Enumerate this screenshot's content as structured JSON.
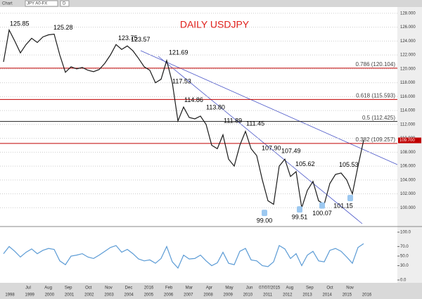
{
  "toolbar": {
    "window": "Chart",
    "symbol": "JPY A0-FX",
    "period": "D"
  },
  "chart_data": [
    {
      "type": "line",
      "title": "DAILY USDJPY",
      "title_color": "#e0201b",
      "color": "#1a1a1a",
      "values": [
        121.0,
        125.6,
        124.0,
        122.3,
        123.5,
        124.4,
        123.8,
        124.6,
        124.9,
        125.0,
        122.0,
        119.5,
        120.3,
        120.0,
        120.2,
        119.8,
        119.6,
        119.9,
        120.8,
        122.0,
        123.5,
        122.8,
        123.3,
        122.6,
        121.5,
        120.3,
        119.8,
        118.0,
        118.5,
        121.2,
        118.0,
        112.5,
        114.5,
        113.0,
        112.8,
        113.2,
        112.0,
        109.0,
        108.5,
        110.5,
        107.0,
        106.0,
        109.0,
        111.0,
        108.5,
        107.5,
        104.0,
        101.0,
        100.5,
        106.0,
        107.0,
        104.5,
        105.2,
        100.0,
        102.5,
        103.8,
        101.0,
        100.5,
        103.5,
        104.8,
        105.0,
        104.0,
        102.0,
        106.0,
        109.7
      ],
      "ylim": [
        97.7,
        128.7
      ],
      "yticks": [
        {
          "value": 100,
          "label": "100.000"
        },
        {
          "value": 102,
          "label": "102.000"
        },
        {
          "value": 104,
          "label": "104.000"
        },
        {
          "value": 106,
          "label": "106.000"
        },
        {
          "value": 108,
          "label": "108.000"
        },
        {
          "value": 110,
          "label": "110.000"
        },
        {
          "value": 112,
          "label": "112.000"
        },
        {
          "value": 114,
          "label": "114.000"
        },
        {
          "value": 116,
          "label": "116.000"
        },
        {
          "value": 118,
          "label": "118.000"
        },
        {
          "value": 120,
          "label": "120.000"
        },
        {
          "value": 122,
          "label": "122.000"
        },
        {
          "value": 124,
          "label": "124.000"
        },
        {
          "value": 126,
          "label": "126.000"
        },
        {
          "value": 128,
          "label": "128.000"
        }
      ],
      "grid": true,
      "levels": [
        {
          "value": 120.104,
          "label": "0.786 (120.104)",
          "color": "#c00000"
        },
        {
          "value": 115.593,
          "label": "0.618 (115.593)",
          "color": "#c00000"
        },
        {
          "value": 112.425,
          "label": "0.5 (112.425)",
          "color": "#222222"
        },
        {
          "value": 109.257,
          "label": "0.382 (109.257)",
          "color": "#c00000"
        }
      ],
      "high_labels": [
        125.85,
        125.28,
        123.75,
        123.57,
        121.69,
        117.53,
        114.86,
        {
          "value": 113.8,
          "label": "113.80"
        },
        111.89,
        111.45,
        {
          "value": 107.9,
          "label": "107.90"
        },
        107.49,
        105.62,
        105.53
      ],
      "low_labels": [
        {
          "value": 99,
          "label": "99.00"
        },
        99.51,
        100.07,
        101.15
      ],
      "low_color": "#9cc8f0",
      "last_price": {
        "value": 109.7,
        "label": "109.700"
      },
      "months": [
        "Jul",
        "Aug",
        "Sep",
        "Oct",
        "Nov",
        "Dec",
        "2016",
        "Feb",
        "Mar",
        "Apr",
        "May",
        "Jun",
        "07/07/2015",
        "Aug",
        "Sep",
        "Oct",
        "Nov"
      ],
      "years": [
        "1998",
        "1999",
        "2000",
        "2001",
        "2002",
        "2003",
        "2004",
        "2005",
        "2006",
        "2007",
        "2008",
        "2009",
        "2010",
        "2011",
        "2012",
        "2013",
        "2014",
        "2015",
        "2016"
      ]
    },
    {
      "type": "line",
      "color": "#5b9bd5",
      "values": [
        55,
        70,
        60,
        48,
        58,
        65,
        55,
        62,
        66,
        64,
        40,
        32,
        50,
        52,
        55,
        48,
        45,
        52,
        60,
        68,
        72,
        58,
        64,
        55,
        44,
        40,
        42,
        35,
        45,
        70,
        38,
        25,
        52,
        44,
        45,
        52,
        40,
        30,
        36,
        58,
        35,
        32,
        60,
        66,
        42,
        40,
        30,
        28,
        38,
        72,
        65,
        45,
        55,
        30,
        52,
        60,
        40,
        38,
        62,
        66,
        60,
        48,
        35,
        68,
        76
      ],
      "ylim": [
        0,
        100
      ],
      "yticks": [
        {
          "value": 0,
          "label": "0.0"
        },
        {
          "value": 30,
          "label": "30.0"
        },
        {
          "value": 50,
          "label": "50.0"
        },
        {
          "value": 70,
          "label": "70.0"
        },
        {
          "value": 100,
          "label": "100.0"
        }
      ]
    }
  ]
}
